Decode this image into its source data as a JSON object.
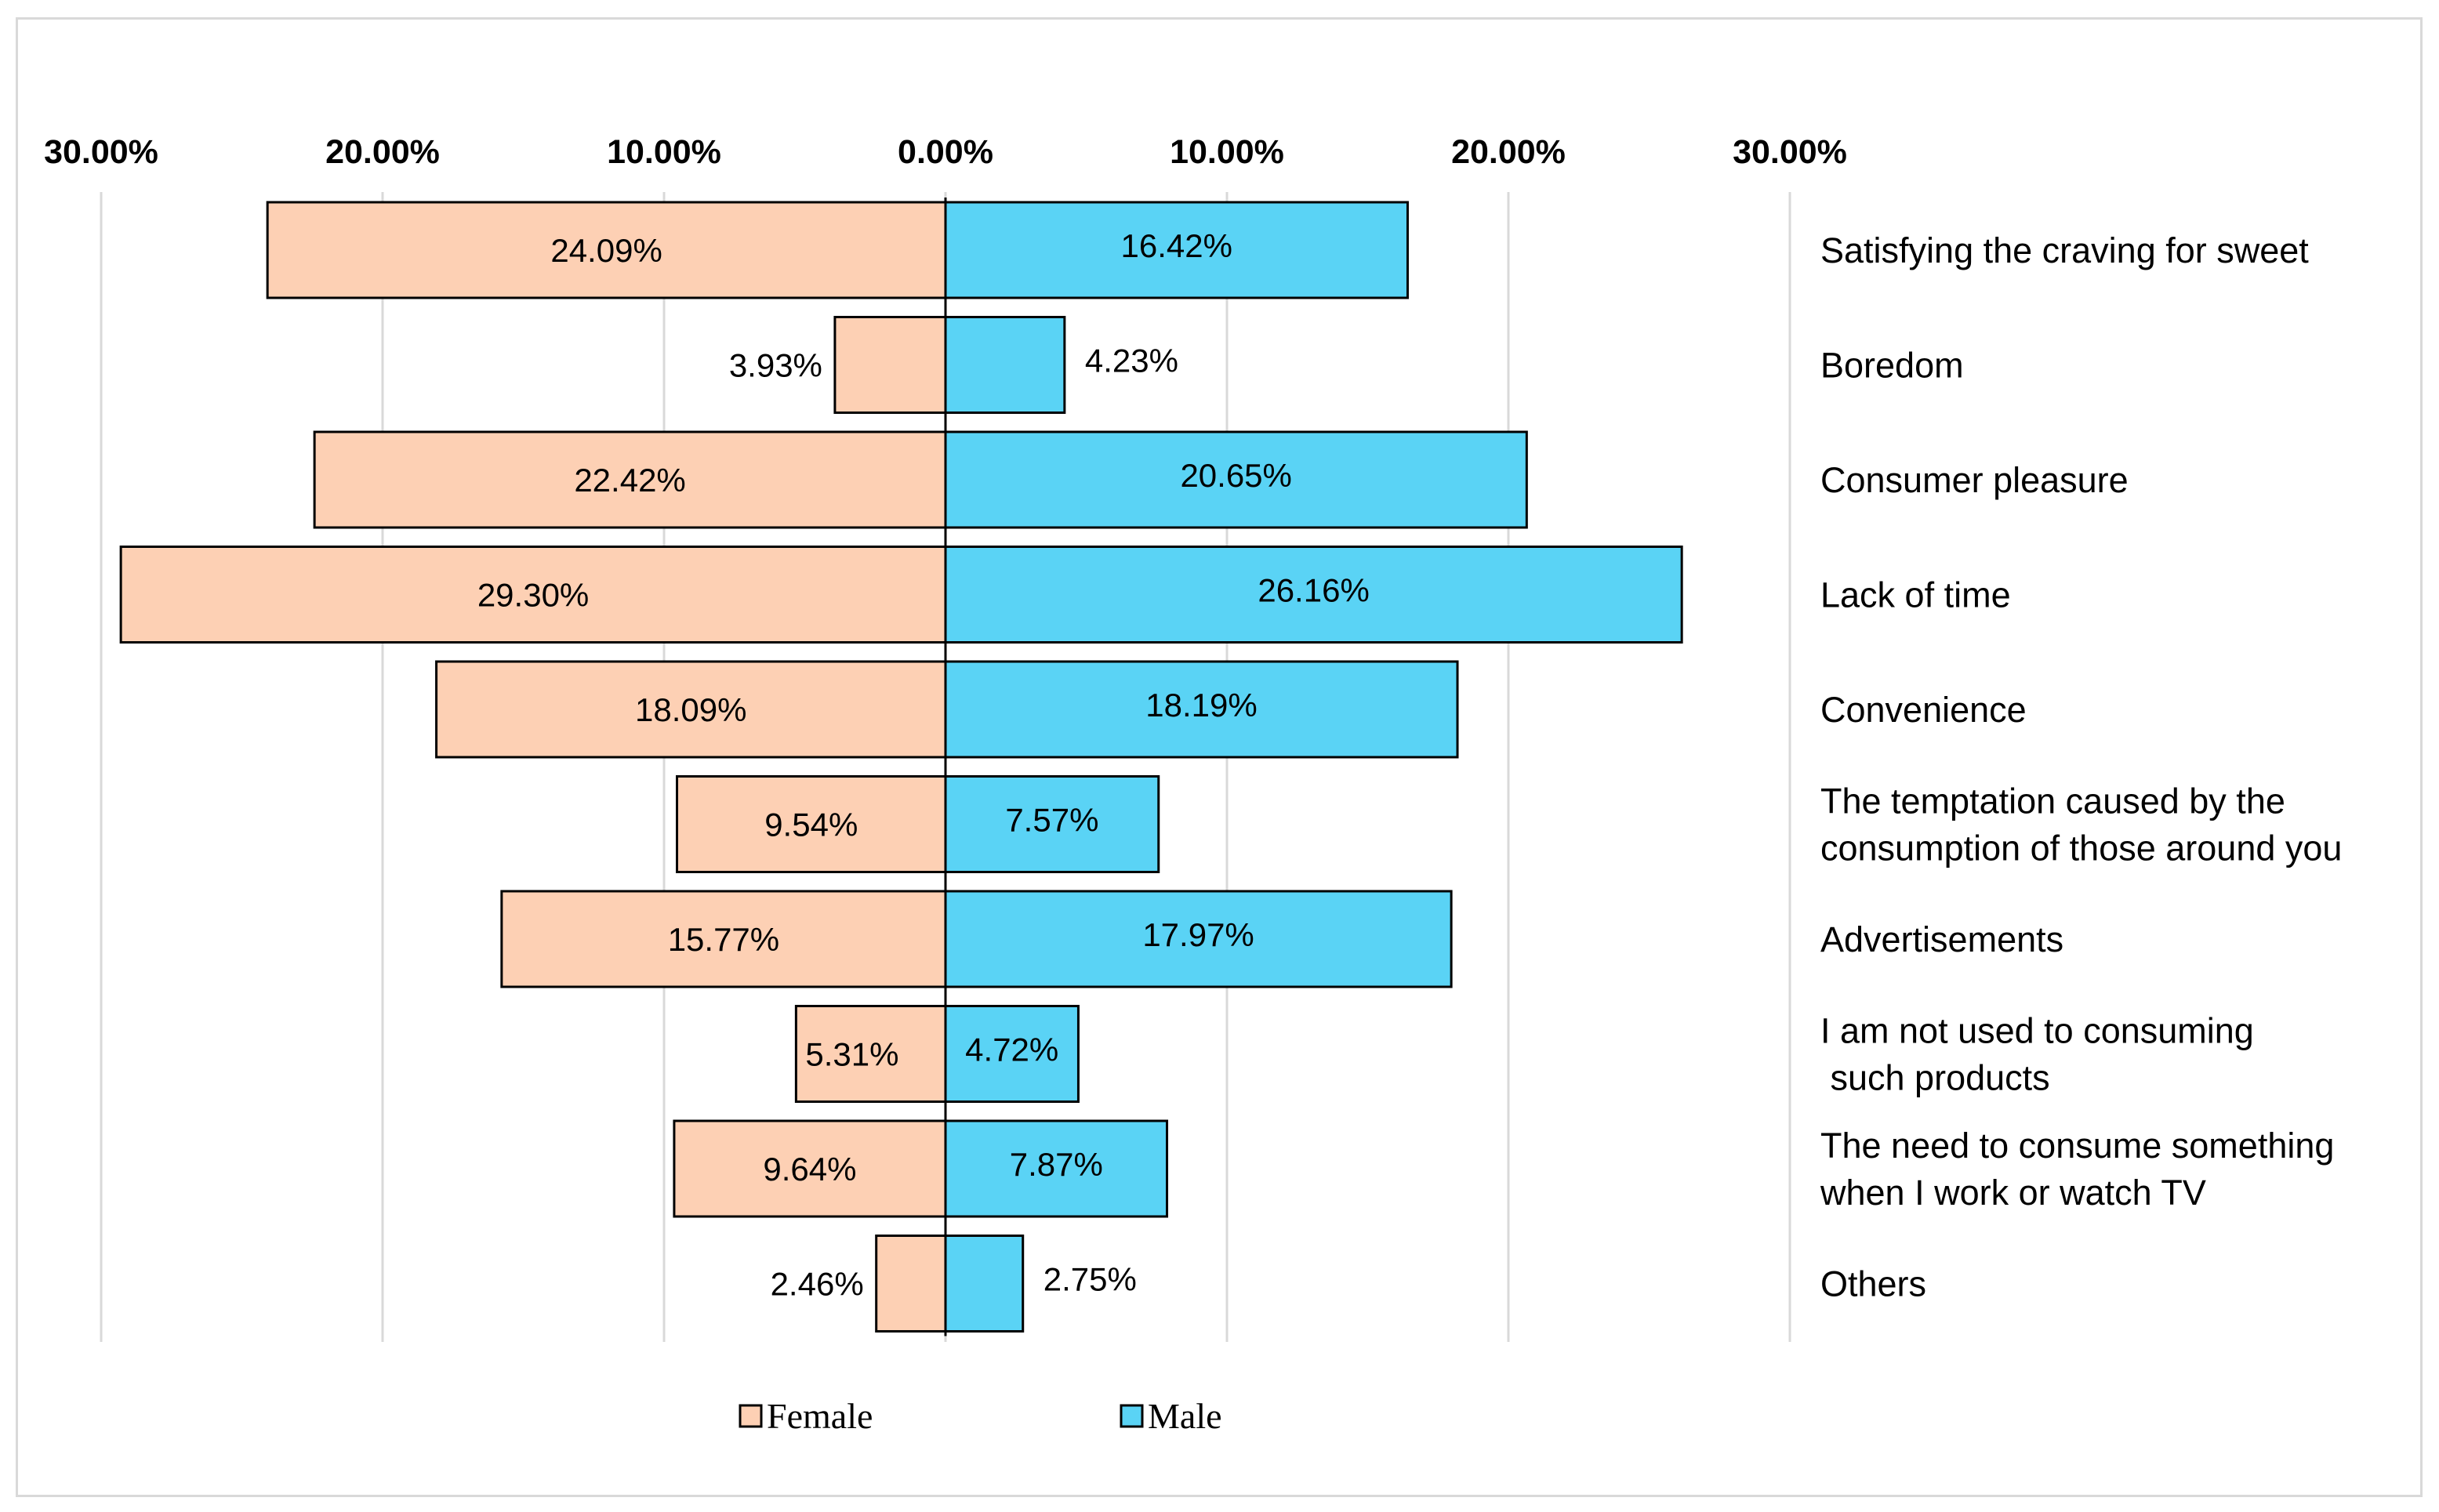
{
  "chart_data": {
    "type": "bar",
    "orientation": "horizontal-diverging",
    "title": "",
    "xlabel": "",
    "ylabel": "",
    "xlim": [
      -30,
      30
    ],
    "x_ticks": [
      -30,
      -20,
      -10,
      0,
      10,
      20,
      30
    ],
    "x_tick_labels": [
      "30.00%",
      "20.00%",
      "10.00%",
      "0.00%",
      "10.00%",
      "20.00%",
      "30.00%"
    ],
    "grid": "vertical",
    "legend_position": "bottom",
    "categories": [
      [
        "Satisfying the craving for sweet"
      ],
      [
        "Boredom"
      ],
      [
        "Consumer pleasure"
      ],
      [
        "Lack of time"
      ],
      [
        "Convenience"
      ],
      [
        "The temptation caused by the",
        "consumption of those around you"
      ],
      [
        "Advertisements"
      ],
      [
        "I am not used to consuming",
        " such products"
      ],
      [
        "The need to consume something",
        "when I work or watch TV"
      ],
      [
        "Others"
      ]
    ],
    "series": [
      {
        "name": "Female",
        "color": "#fdd0b4",
        "values": [
          24.09,
          3.93,
          22.42,
          29.3,
          18.09,
          9.54,
          15.77,
          5.31,
          9.64,
          2.46
        ],
        "labels": [
          "24.09%",
          "3.93%",
          "22.42%",
          "29.30%",
          "18.09%",
          "9.54%",
          "15.77%",
          "5.31%",
          "9.64%",
          "2.46%"
        ]
      },
      {
        "name": "Male",
        "color": "#5ad3f5",
        "values": [
          16.42,
          4.23,
          20.65,
          26.16,
          18.19,
          7.57,
          17.97,
          4.72,
          7.87,
          2.75
        ],
        "labels": [
          "16.42%",
          "4.23%",
          "20.65%",
          "26.16%",
          "18.19%",
          "7.57%",
          "17.97%",
          "4.72%",
          "7.87%",
          "2.75%"
        ]
      }
    ]
  }
}
